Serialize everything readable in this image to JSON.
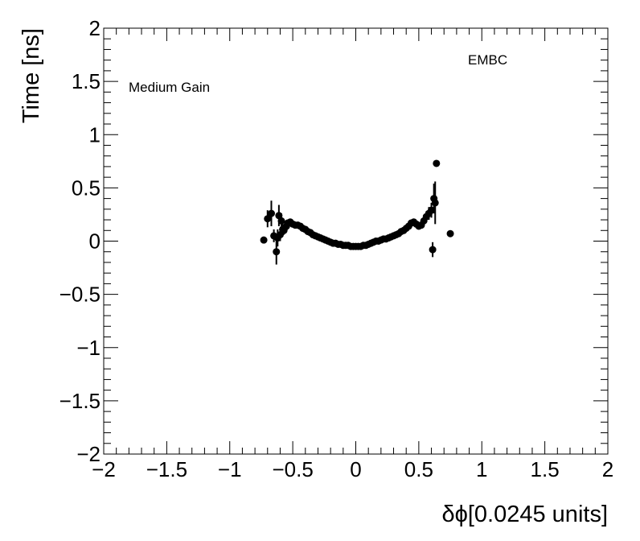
{
  "chart_data": {
    "type": "scatter",
    "title": "",
    "xlabel": "δϕ[0.0245 units]",
    "ylabel": "Time [ns]",
    "xlim": [
      -2,
      2
    ],
    "ylim": [
      -2,
      2
    ],
    "x_tick_labels": [
      "−2",
      "−1.5",
      "−1",
      "−0.5",
      "0",
      "0.5",
      "1",
      "1.5",
      "2"
    ],
    "y_tick_labels": [
      "−2",
      "−1.5",
      "−1",
      "−0.5",
      "0",
      "0.5",
      "1",
      "1.5",
      "2"
    ],
    "grid": false,
    "annotations": [
      "Medium Gain",
      "EMBC"
    ],
    "marker_color": "#000000",
    "series": [
      {
        "x": [
          -0.73,
          -0.7,
          -0.67,
          -0.65,
          -0.63,
          -0.62,
          -0.61,
          -0.6,
          -0.59,
          -0.58,
          -0.57,
          -0.56,
          -0.55,
          -0.54,
          -0.52,
          -0.5,
          -0.48,
          -0.46,
          -0.44,
          -0.42,
          -0.4,
          -0.38,
          -0.36,
          -0.34,
          -0.32,
          -0.3,
          -0.28,
          -0.26,
          -0.24,
          -0.22,
          -0.2,
          -0.18,
          -0.16,
          -0.14,
          -0.12,
          -0.1,
          -0.08,
          -0.06,
          -0.04,
          -0.02,
          0.0,
          0.02,
          0.04,
          0.06,
          0.08,
          0.1,
          0.12,
          0.14,
          0.16,
          0.18,
          0.2,
          0.22,
          0.24,
          0.26,
          0.28,
          0.3,
          0.32,
          0.34,
          0.36,
          0.38,
          0.4,
          0.42,
          0.44,
          0.46,
          0.48,
          0.5,
          0.52,
          0.54,
          0.56,
          0.58,
          0.6,
          0.61,
          0.62,
          0.63,
          0.64,
          0.75
        ],
        "y": [
          0.01,
          0.21,
          0.26,
          0.05,
          -0.1,
          0.03,
          0.24,
          0.06,
          0.19,
          0.11,
          0.1,
          0.13,
          0.14,
          0.17,
          0.18,
          0.16,
          0.15,
          0.15,
          0.14,
          0.12,
          0.11,
          0.09,
          0.08,
          0.06,
          0.05,
          0.04,
          0.03,
          0.02,
          0.01,
          0.0,
          -0.01,
          -0.02,
          -0.02,
          -0.03,
          -0.03,
          -0.04,
          -0.04,
          -0.04,
          -0.05,
          -0.05,
          -0.05,
          -0.05,
          -0.05,
          -0.04,
          -0.04,
          -0.03,
          -0.02,
          -0.01,
          0.0,
          0.0,
          0.01,
          0.02,
          0.02,
          0.03,
          0.04,
          0.05,
          0.06,
          0.07,
          0.09,
          0.1,
          0.12,
          0.14,
          0.17,
          0.18,
          0.16,
          0.14,
          0.15,
          0.19,
          0.23,
          0.26,
          0.29,
          -0.08,
          0.4,
          0.36,
          0.73,
          0.07
        ],
        "err": [
          0,
          0.08,
          0.12,
          0.06,
          0.12,
          0.08,
          0.1,
          0.06,
          0.07,
          0.05,
          0.04,
          0.03,
          0.03,
          0.03,
          0.02,
          0.02,
          0.02,
          0.02,
          0.02,
          0.02,
          0.01,
          0.01,
          0.01,
          0.01,
          0.01,
          0.01,
          0.01,
          0.01,
          0.01,
          0.01,
          0.01,
          0.01,
          0.01,
          0.01,
          0.01,
          0.01,
          0.01,
          0.01,
          0.01,
          0.01,
          0.01,
          0.01,
          0.01,
          0.01,
          0.01,
          0.01,
          0.01,
          0.01,
          0.01,
          0.01,
          0.01,
          0.01,
          0.01,
          0.01,
          0.01,
          0.01,
          0.01,
          0.01,
          0.01,
          0.02,
          0.02,
          0.02,
          0.02,
          0.02,
          0.02,
          0.02,
          0.03,
          0.04,
          0.05,
          0.06,
          0.07,
          0.07,
          0.14,
          0.2,
          0,
          0
        ]
      }
    ]
  }
}
